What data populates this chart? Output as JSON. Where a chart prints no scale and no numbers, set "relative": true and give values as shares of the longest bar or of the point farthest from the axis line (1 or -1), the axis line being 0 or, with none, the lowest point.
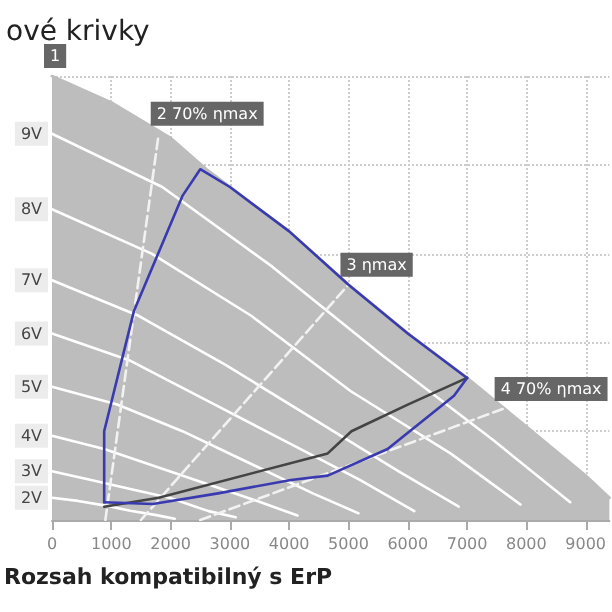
{
  "chart_data": {
    "type": "line",
    "title": "ové krivky",
    "relative": true,
    "xlim": [
      0,
      9400
    ],
    "xticks": [
      0,
      1000,
      2000,
      3000,
      4000,
      5000,
      6000,
      7000,
      8000,
      9000
    ],
    "grid": true,
    "legend": false,
    "marker": "none",
    "annotations": [
      {
        "text": "1",
        "x": 0,
        "y": 1.0
      },
      {
        "text": "2 70% ηmax",
        "x": 1800,
        "y": 0.87
      },
      {
        "text": "3 ηmax",
        "x": 5000,
        "y": 0.53
      },
      {
        "text": "4 70% ηmax",
        "x": 7600,
        "y": 0.25
      },
      "Rozsah kompatibilný s ErP"
    ],
    "series": [
      {
        "type": "area",
        "color": "#bdbdbd",
        "x": [
          0,
          1000,
          2000,
          2600,
          3000,
          4000,
          5000,
          6000,
          7000,
          8000,
          9000,
          9400
        ],
        "values": [
          1.0,
          0.94,
          0.86,
          0.79,
          0.75,
          0.65,
          0.53,
          0.42,
          0.32,
          0.21,
          0.1,
          0.05
        ]
      },
      {
        "name": "9V",
        "color": "#ffffff",
        "x": [
          0,
          1860,
          3720,
          5580,
          7440,
          8740
        ],
        "values": [
          0.87,
          0.75,
          0.57,
          0.37,
          0.18,
          0.04
        ]
      },
      {
        "name": "8V",
        "color": "#ffffff",
        "x": [
          0,
          1680,
          3360,
          5040,
          6720,
          7900
        ],
        "values": [
          0.7,
          0.6,
          0.46,
          0.29,
          0.15,
          0.035
        ]
      },
      {
        "name": "7V",
        "color": "#ffffff",
        "x": [
          0,
          1460,
          2920,
          4380,
          5840,
          6860
        ],
        "values": [
          0.54,
          0.46,
          0.35,
          0.23,
          0.11,
          0.03
        ]
      },
      {
        "name": "6V",
        "color": "#ffffff",
        "x": [
          0,
          1300,
          2600,
          3900,
          5200,
          6110
        ],
        "values": [
          0.42,
          0.36,
          0.27,
          0.18,
          0.09,
          0.02
        ]
      },
      {
        "name": "5V",
        "color": "#ffffff",
        "x": [
          0,
          1100,
          2200,
          3300,
          4400,
          5170
        ],
        "values": [
          0.3,
          0.26,
          0.2,
          0.13,
          0.06,
          0.015
        ]
      },
      {
        "name": "4V",
        "color": "#ffffff",
        "x": [
          0,
          880,
          1760,
          2640,
          3520,
          4140
        ],
        "values": [
          0.19,
          0.16,
          0.12,
          0.08,
          0.04,
          0.01
        ]
      },
      {
        "name": "3V",
        "color": "#ffffff",
        "x": [
          0,
          660,
          1320,
          1980,
          2640,
          3100
        ],
        "values": [
          0.11,
          0.09,
          0.07,
          0.05,
          0.02,
          0.006
        ]
      },
      {
        "name": "2V",
        "color": "#ffffff",
        "x": [
          0,
          440,
          880,
          1320,
          1760,
          2070
        ],
        "values": [
          0.05,
          0.043,
          0.033,
          0.021,
          0.011,
          0.003
        ]
      },
      {
        "color": "#f2f2f2",
        "line_style": "dashed",
        "x": [
          900,
          1800
        ],
        "values": [
          0,
          0.87
        ]
      },
      {
        "color": "#f2f2f2",
        "line_style": "dashed",
        "x": [
          1500,
          5000
        ],
        "values": [
          0,
          0.53
        ]
      },
      {
        "color": "#f2f2f2",
        "line_style": "dashed",
        "x": [
          2500,
          7600
        ],
        "values": [
          0,
          0.25
        ]
      },
      {
        "color": "#444444",
        "x": [
          880,
          1800,
          4650,
          5050,
          6000,
          7000
        ],
        "values": [
          0.03,
          0.05,
          0.15,
          0.2,
          0.26,
          0.32
        ]
      },
      {
        "color": "#3a3ab0",
        "x": [
          880,
          880,
          1380,
          2200,
          2500,
          3000,
          4000,
          5000,
          6000,
          7000
        ],
        "values": [
          0.04,
          0.2,
          0.47,
          0.73,
          0.79,
          0.75,
          0.65,
          0.53,
          0.42,
          0.32
        ]
      },
      {
        "color": "#3a3ab0",
        "x": [
          880,
          1700,
          2800,
          4030,
          4650,
          5660,
          6780,
          7000
        ],
        "values": [
          0.04,
          0.036,
          0.06,
          0.09,
          0.1,
          0.16,
          0.28,
          0.32
        ]
      }
    ]
  }
}
